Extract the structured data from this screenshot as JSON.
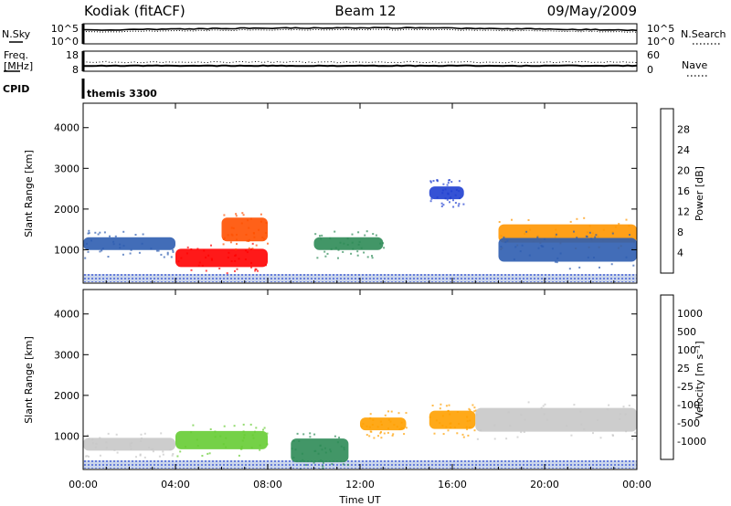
{
  "header": {
    "station": "Kodiak (fitACF)",
    "beam": "Beam 12",
    "date": "09/May/2009"
  },
  "sky_panel": {
    "left_label": "N.Sky",
    "left_ticks": [
      "10^5",
      "10^0"
    ],
    "right_ticks": [
      "10^5",
      "10^0"
    ],
    "right_label": "N.Search"
  },
  "freq_panel": {
    "left_label_1": "Freq.",
    "left_label_2": "[MHz]",
    "left_ticks": [
      "18",
      "8"
    ],
    "right_ticks": [
      "60",
      "0"
    ],
    "right_label": "Nave"
  },
  "cpid": {
    "label": "CPID",
    "value": "themis 3300"
  },
  "colors": {
    "power": [
      "#0000ff",
      "#1f3fd0",
      "#2e5db0",
      "#2e8b57",
      "#7acd32",
      "#f0c800",
      "#ff9600",
      "#ff5000",
      "#ff0000"
    ],
    "velocity": [
      "#ff0000",
      "#ff5a00",
      "#ffa000",
      "#ffd040",
      "#c8c8c8",
      "#66cc33",
      "#2e8b57",
      "#3050b0",
      "#1020ff"
    ]
  },
  "chart_data": [
    {
      "type": "heatmap",
      "title": "Power",
      "xlabel": "",
      "ylabel": "Slant Range [km]",
      "xlim": [
        "00:00",
        "24:00"
      ],
      "ylim": [
        180,
        4600
      ],
      "x_ticks": [
        "00:00",
        "04:00",
        "08:00",
        "12:00",
        "16:00",
        "20:00",
        "00:00"
      ],
      "y_ticks": [
        1000,
        2000,
        3000,
        4000
      ],
      "colorbar": {
        "label": "Power [dB]",
        "range": [
          0,
          32
        ],
        "ticks": [
          4,
          8,
          12,
          16,
          20,
          24,
          28
        ]
      },
      "features": [
        {
          "time_start": "00:00",
          "time_end": "04:00",
          "range_km": 1150,
          "level_db": 8
        },
        {
          "time_start": "04:00",
          "time_end": "08:00",
          "range_km": 800,
          "level_db": 30
        },
        {
          "time_start": "06:00",
          "time_end": "08:00",
          "range_km": 1500,
          "level_db": 26
        },
        {
          "time_start": "10:00",
          "time_end": "13:00",
          "range_km": 1150,
          "level_db": 14
        },
        {
          "time_start": "18:00",
          "time_end": "24:00",
          "range_km": 1400,
          "level_db": 22
        },
        {
          "time_start": "18:00",
          "time_end": "24:00",
          "range_km": 1000,
          "level_db": 9
        },
        {
          "time_start": "15:00",
          "time_end": "16:30",
          "range_km": 2400,
          "level_db": 7
        }
      ]
    },
    {
      "type": "heatmap",
      "title": "Velocity",
      "xlabel": "Time UT",
      "ylabel": "Slant Range [km]",
      "xlim": [
        "00:00",
        "24:00"
      ],
      "ylim": [
        180,
        4600
      ],
      "x_ticks": [
        "00:00",
        "04:00",
        "08:00",
        "12:00",
        "16:00",
        "20:00",
        "00:00"
      ],
      "y_ticks": [
        1000,
        2000,
        3000,
        4000
      ],
      "colorbar": {
        "label": "Velocity [m s⁻¹]",
        "ticks": [
          1000,
          500,
          100,
          25,
          -25,
          -100,
          -500,
          -1000
        ]
      },
      "features": [
        {
          "time_start": "00:00",
          "time_end": "04:00",
          "range_km": 800,
          "velocity_ms": 0
        },
        {
          "time_start": "04:00",
          "time_end": "08:00",
          "range_km": 900,
          "velocity_ms": 60
        },
        {
          "time_start": "09:00",
          "time_end": "11:30",
          "range_km": 650,
          "velocity_ms": 300
        },
        {
          "time_start": "12:00",
          "time_end": "14:00",
          "range_km": 1300,
          "velocity_ms": -200
        },
        {
          "time_start": "15:00",
          "time_end": "17:00",
          "range_km": 1400,
          "velocity_ms": -300
        },
        {
          "time_start": "17:00",
          "time_end": "24:00",
          "range_km": 1400,
          "velocity_ms": 0
        }
      ]
    }
  ]
}
